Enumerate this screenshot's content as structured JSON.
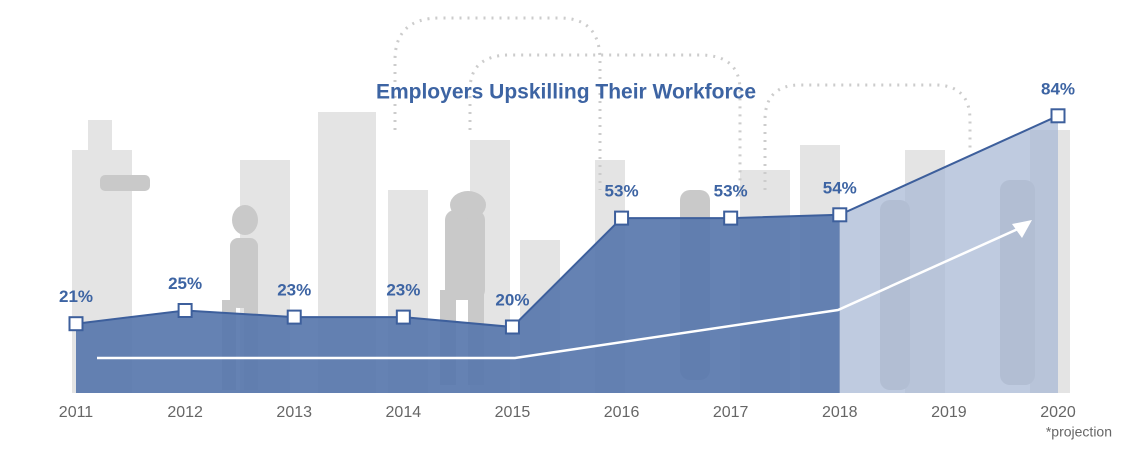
{
  "chart_data": {
    "type": "area",
    "title": "Employers Upskilling Their Workforce",
    "x": [
      2011,
      2012,
      2013,
      2014,
      2015,
      2016,
      2017,
      2018,
      2020
    ],
    "values": [
      21,
      25,
      23,
      23,
      20,
      53,
      53,
      54,
      84
    ],
    "value_labels": [
      "21%",
      "25%",
      "23%",
      "23%",
      "20%",
      "53%",
      "53%",
      "54%",
      "84%"
    ],
    "color": "#5877ad",
    "line_color": "#3d5f9c",
    "projection_color": "#a9bad6",
    "xlim": [
      2011,
      2020
    ],
    "xticks": [
      2011,
      2012,
      2013,
      2014,
      2015,
      2016,
      2017,
      2018,
      2019,
      2020
    ],
    "ylim": [
      0,
      100
    ],
    "grid": false,
    "note": "*projection"
  }
}
